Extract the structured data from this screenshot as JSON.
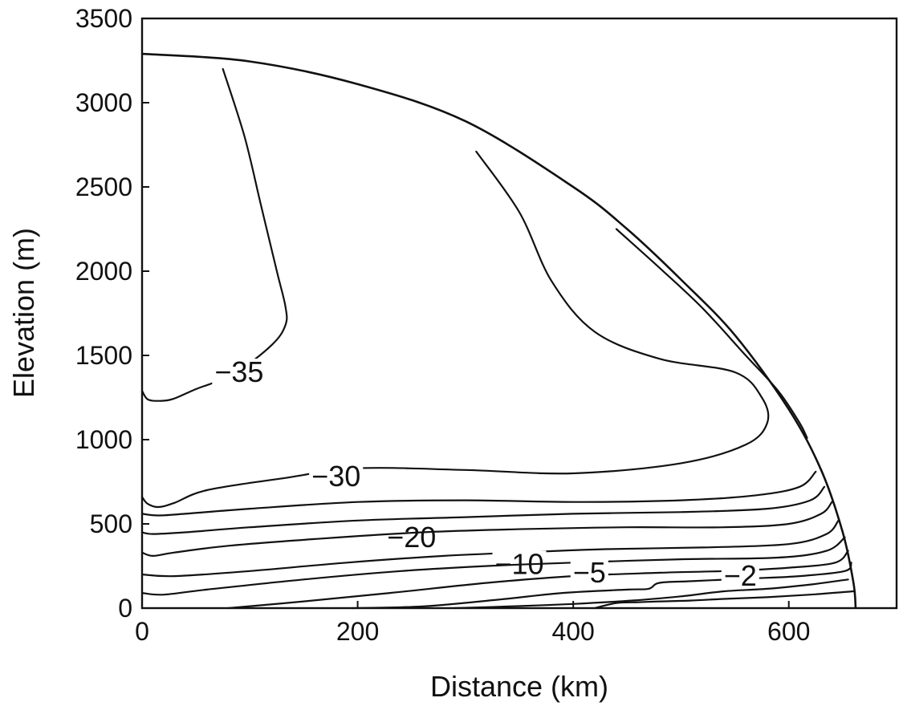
{
  "chart_data": {
    "type": "contour",
    "xlabel": "Distance (km)",
    "ylabel": "Elevation (m)",
    "xlim": [
      0,
      700
    ],
    "ylim": [
      0,
      3500
    ],
    "xticks": [
      0,
      200,
      400,
      600
    ],
    "yticks": [
      0,
      500,
      1000,
      1500,
      2000,
      2500,
      3000,
      3500
    ],
    "grid": false,
    "legend": false,
    "surface": [
      [
        0,
        3290
      ],
      [
        100,
        3245
      ],
      [
        200,
        3110
      ],
      [
        300,
        2890
      ],
      [
        400,
        2500
      ],
      [
        450,
        2250
      ],
      [
        500,
        1950
      ],
      [
        550,
        1620
      ],
      [
        600,
        1180
      ],
      [
        630,
        820
      ],
      [
        650,
        450
      ],
      [
        660,
        150
      ],
      [
        662,
        0
      ]
    ],
    "contours": [
      {
        "level": -35,
        "label": "−35",
        "label_at": [
          90,
          1400
        ],
        "points": [
          [
            0,
            1290
          ],
          [
            5,
            1240
          ],
          [
            15,
            1230
          ],
          [
            28,
            1240
          ],
          [
            50,
            1300
          ],
          [
            85,
            1390
          ],
          [
            120,
            1560
          ],
          [
            133,
            1680
          ],
          [
            133,
            1790
          ],
          [
            125,
            2000
          ],
          [
            110,
            2400
          ],
          [
            95,
            2800
          ],
          [
            75,
            3200
          ]
        ]
      },
      {
        "level": -30,
        "label": "−30",
        "label_at": [
          180,
          780
        ],
        "points": [
          [
            0,
            660
          ],
          [
            5,
            620
          ],
          [
            15,
            600
          ],
          [
            30,
            625
          ],
          [
            60,
            700
          ],
          [
            130,
            770
          ],
          [
            200,
            830
          ],
          [
            300,
            820
          ],
          [
            400,
            800
          ],
          [
            500,
            860
          ],
          [
            560,
            970
          ],
          [
            580,
            1100
          ],
          [
            575,
            1250
          ],
          [
            550,
            1400
          ],
          [
            480,
            1480
          ],
          [
            420,
            1640
          ],
          [
            380,
            1940
          ],
          [
            350,
            2350
          ],
          [
            310,
            2710
          ]
        ]
      },
      {
        "level": -30,
        "label": "",
        "label_at": null,
        "points": [
          [
            440,
            2250
          ],
          [
            480,
            2020
          ],
          [
            520,
            1780
          ],
          [
            560,
            1500
          ],
          [
            590,
            1290
          ],
          [
            610,
            1100
          ],
          [
            617,
            1010
          ]
        ]
      },
      {
        "level": -25,
        "label": "",
        "label_at": null,
        "points": [
          [
            0,
            560
          ],
          [
            15,
            550
          ],
          [
            40,
            560
          ],
          [
            100,
            590
          ],
          [
            200,
            630
          ],
          [
            300,
            640
          ],
          [
            400,
            630
          ],
          [
            500,
            640
          ],
          [
            570,
            670
          ],
          [
            610,
            720
          ],
          [
            625,
            810
          ]
        ]
      },
      {
        "level": -20,
        "label": "−20",
        "label_at": [
          250,
          420
        ],
        "points": [
          [
            0,
            450
          ],
          [
            10,
            440
          ],
          [
            40,
            450
          ],
          [
            100,
            480
          ],
          [
            200,
            520
          ],
          [
            300,
            540
          ],
          [
            400,
            560
          ],
          [
            500,
            570
          ],
          [
            580,
            590
          ],
          [
            620,
            640
          ],
          [
            633,
            720
          ]
        ]
      },
      {
        "level": -15,
        "label": "",
        "label_at": null,
        "points": [
          [
            0,
            330
          ],
          [
            10,
            310
          ],
          [
            30,
            330
          ],
          [
            80,
            370
          ],
          [
            160,
            410
          ],
          [
            260,
            450
          ],
          [
            360,
            470
          ],
          [
            450,
            480
          ],
          [
            540,
            480
          ],
          [
            600,
            500
          ],
          [
            630,
            560
          ],
          [
            640,
            630
          ]
        ]
      },
      {
        "level": -10,
        "label": "−10",
        "label_at": [
          350,
          260
        ],
        "points": [
          [
            0,
            200
          ],
          [
            30,
            190
          ],
          [
            100,
            220
          ],
          [
            190,
            270
          ],
          [
            280,
            310
          ],
          [
            350,
            330
          ],
          [
            430,
            350
          ],
          [
            520,
            360
          ],
          [
            600,
            380
          ],
          [
            635,
            440
          ],
          [
            646,
            520
          ]
        ]
      },
      {
        "level": -8,
        "label": "",
        "label_at": null,
        "points": [
          [
            0,
            90
          ],
          [
            20,
            80
          ],
          [
            60,
            110
          ],
          [
            150,
            170
          ],
          [
            240,
            220
          ],
          [
            320,
            250
          ],
          [
            400,
            270
          ],
          [
            500,
            290
          ],
          [
            590,
            300
          ],
          [
            635,
            340
          ],
          [
            652,
            420
          ]
        ]
      },
      {
        "level": -5,
        "label": "−5",
        "label_at": [
          415,
          210
        ],
        "points": [
          [
            80,
            0
          ],
          [
            150,
            40
          ],
          [
            230,
            90
          ],
          [
            320,
            150
          ],
          [
            400,
            190
          ],
          [
            480,
            210
          ],
          [
            540,
            220
          ],
          [
            600,
            240
          ],
          [
            643,
            270
          ],
          [
            655,
            340
          ]
        ]
      },
      {
        "level": -2,
        "label": "−2",
        "label_at": [
          555,
          190
        ],
        "points": [
          [
            195,
            0
          ],
          [
            260,
            10
          ],
          [
            330,
            50
          ],
          [
            390,
            90
          ],
          [
            450,
            110
          ],
          [
            470,
            115
          ],
          [
            480,
            150
          ],
          [
            510,
            160
          ],
          [
            560,
            175
          ],
          [
            610,
            190
          ],
          [
            652,
            220
          ],
          [
            658,
            270
          ]
        ]
      },
      {
        "level": -1,
        "label": "",
        "label_at": null,
        "points": [
          [
            290,
            0
          ],
          [
            340,
            10
          ],
          [
            400,
            25
          ],
          [
            455,
            45
          ],
          [
            500,
            70
          ],
          [
            540,
            100
          ],
          [
            580,
            115
          ],
          [
            620,
            140
          ],
          [
            655,
            170
          ]
        ]
      },
      {
        "level": -0.5,
        "label": "",
        "label_at": null,
        "points": [
          [
            420,
            0
          ],
          [
            440,
            30
          ],
          [
            460,
            35
          ],
          [
            480,
            40
          ],
          [
            510,
            45
          ],
          [
            540,
            55
          ],
          [
            580,
            65
          ],
          [
            620,
            80
          ],
          [
            660,
            100
          ]
        ]
      }
    ]
  }
}
